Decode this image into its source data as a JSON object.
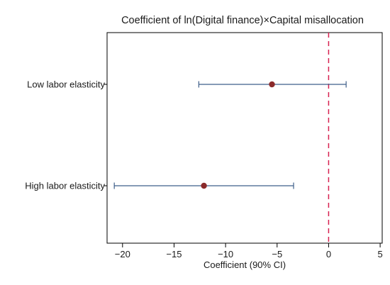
{
  "chart_data": {
    "type": "coefficient_plot",
    "title": "Coefficient of ln(Digital finance)×Capital misallocation",
    "xlabel": "Coefficient (90% CI)",
    "ylabel": "",
    "xlim": [
      -21.5,
      5.2
    ],
    "xticks": [
      -20,
      -15,
      -10,
      -5,
      0,
      5
    ],
    "xtick_labels": [
      "−20",
      "−15",
      "−10",
      "−5",
      "0",
      "5"
    ],
    "reference_line": {
      "x": 0,
      "style": "dashed",
      "color": "#d62050"
    },
    "categories": [
      "Low labor elasticity",
      "High labor elasticity"
    ],
    "points": [
      {
        "category": "Low labor elasticity",
        "estimate": -5.5,
        "ci_low": -12.6,
        "ci_high": 1.7
      },
      {
        "category": "High labor elasticity",
        "estimate": -12.1,
        "ci_low": -20.8,
        "ci_high": -3.4
      }
    ],
    "colors": {
      "marker": "#8b2a2a",
      "ci_line": "#3f5f8a",
      "frame": "#000000"
    },
    "grid": false,
    "legend": "none"
  }
}
